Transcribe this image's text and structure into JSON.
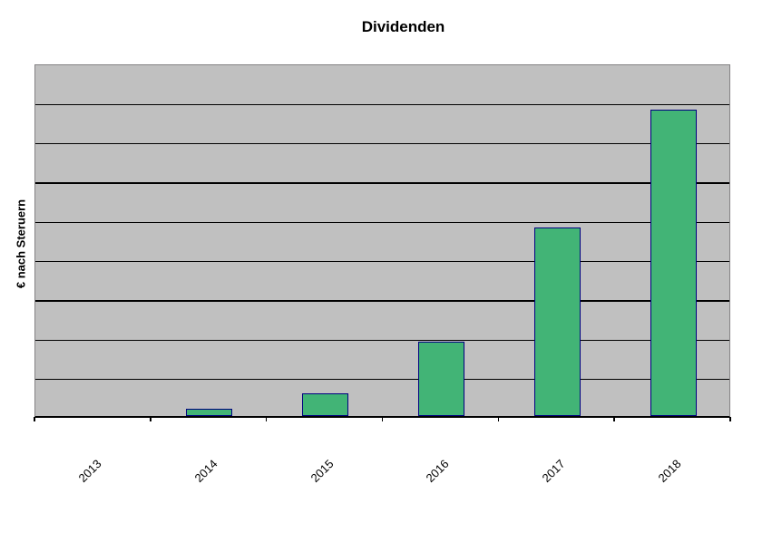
{
  "page": {
    "background": "#FFFFFF"
  },
  "chart_data": {
    "type": "bar",
    "title": "Dividenden",
    "ylabel": "€ nach Steruern",
    "xlabel": "",
    "categories": [
      "2013",
      "2014",
      "2015",
      "2016",
      "2017",
      "2018"
    ],
    "series": [
      {
        "name": "Dividenden",
        "values": [
          0,
          0.18,
          0.58,
          1.9,
          4.8,
          7.8
        ]
      }
    ],
    "values": [
      0,
      0.18,
      0.58,
      1.9,
      4.8,
      7.8
    ],
    "ylim": [
      0,
      9
    ],
    "y_gridline_interval": 1,
    "y_tick_labels_visible": false,
    "grid": true,
    "legend": false,
    "note": "Value axis shows no numeric labels; bar values estimated in gridline units (plot divided into 9 horizontal bands).",
    "style": {
      "bar_fill": "#42B476",
      "bar_border": "#000080",
      "plot_background": "#C0C0C0",
      "plot_border": "#848284",
      "gridline_color": "#000000",
      "axis_color": "#000000",
      "text_color": "#000000",
      "x_label_rotation_deg": 45,
      "bar_width_fraction": 0.4
    }
  }
}
